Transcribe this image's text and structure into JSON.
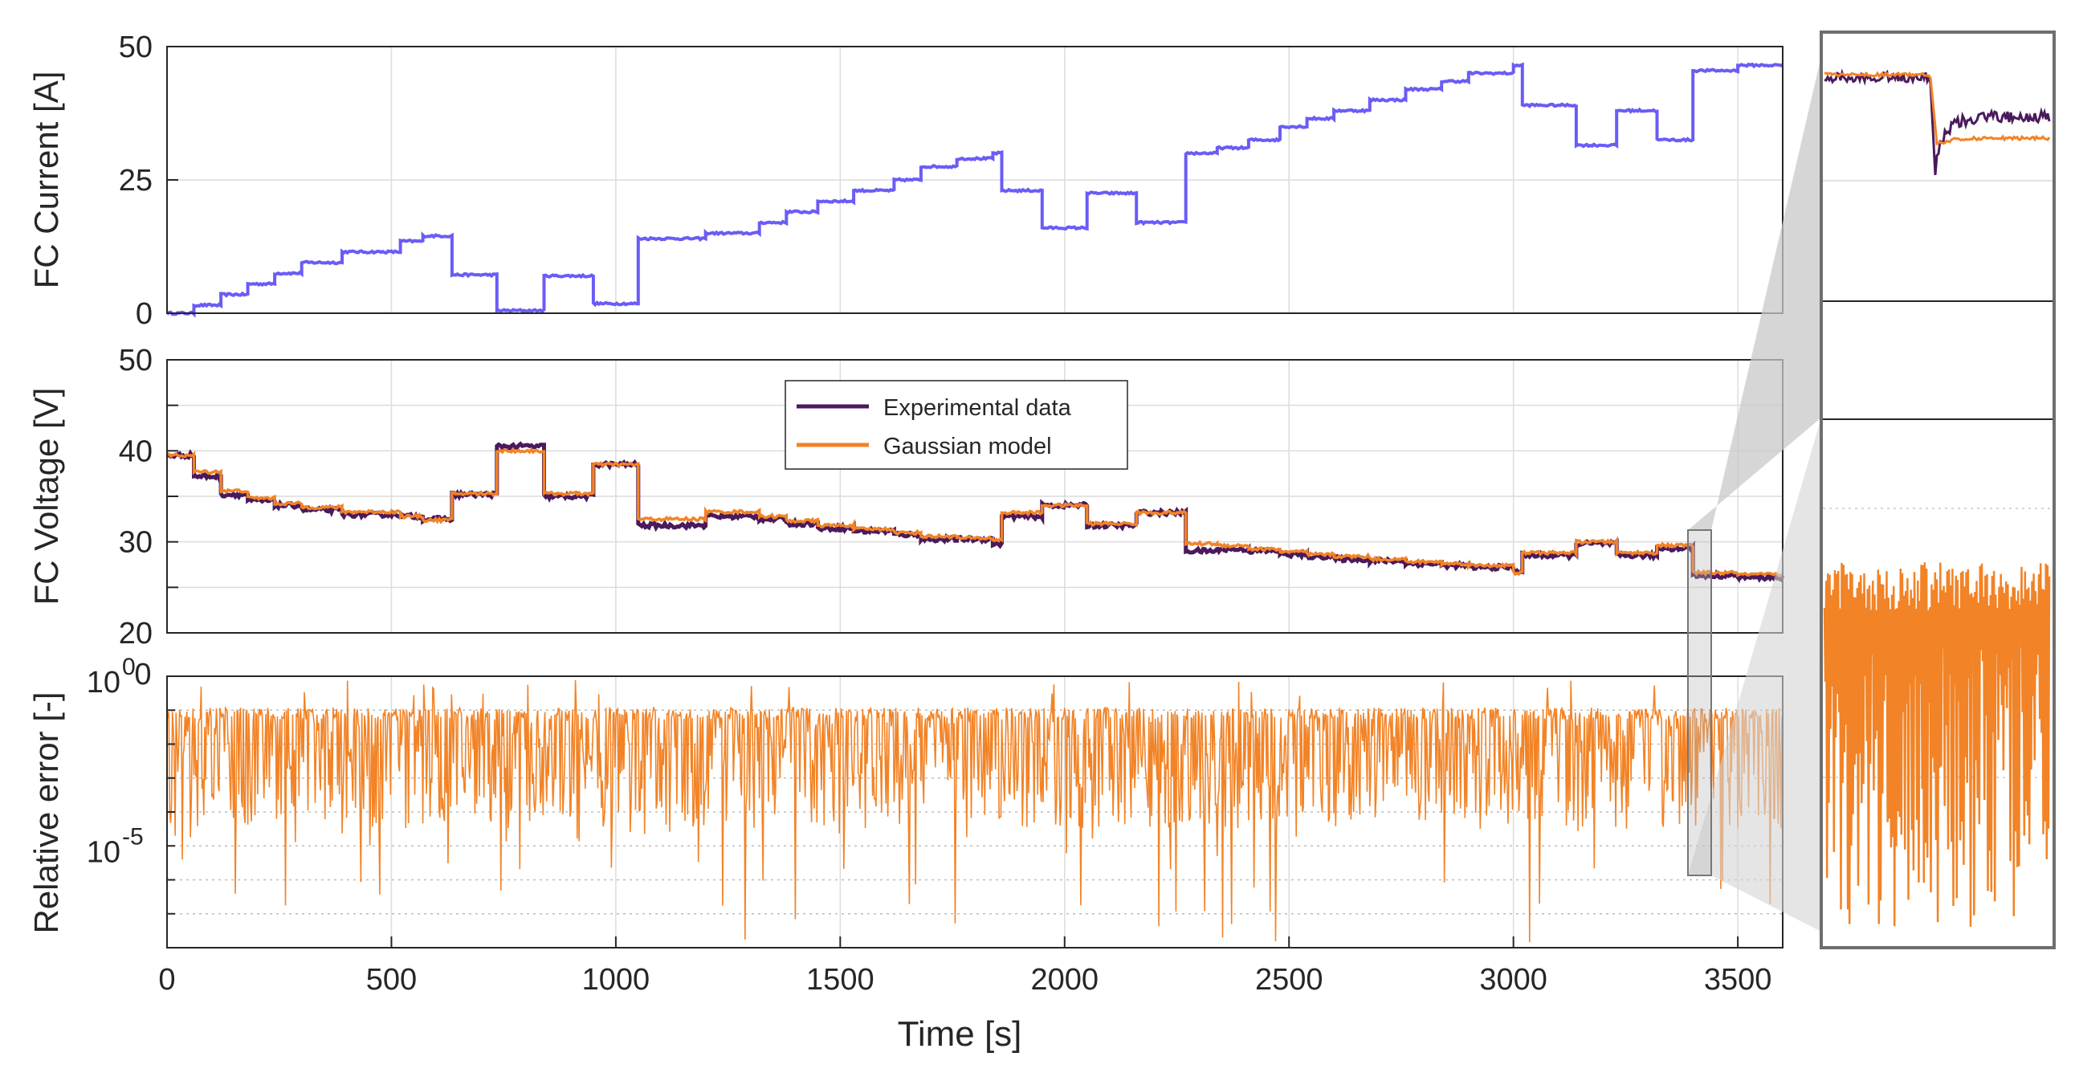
{
  "chart_data": [
    {
      "type": "line",
      "panel": "current",
      "ylabel": "FC Current [A]",
      "ylim": [
        0,
        50
      ],
      "yticks": [
        "0",
        "25",
        "50"
      ],
      "xlim": [
        0,
        3600
      ],
      "series": [
        {
          "name": "FC Current",
          "color": "#6a5cf6",
          "steps": [
            [
              0,
              0
            ],
            [
              60,
              1.5
            ],
            [
              120,
              3.5
            ],
            [
              180,
              5.5
            ],
            [
              240,
              7.5
            ],
            [
              300,
              9.5
            ],
            [
              390,
              11.5
            ],
            [
              520,
              13.5
            ],
            [
              570,
              14.5
            ],
            [
              635,
              7.2
            ],
            [
              735,
              0.5
            ],
            [
              840,
              7
            ],
            [
              950,
              1.8
            ],
            [
              1050,
              14
            ],
            [
              1200,
              15
            ],
            [
              1320,
              17
            ],
            [
              1380,
              19
            ],
            [
              1450,
              21
            ],
            [
              1530,
              23
            ],
            [
              1620,
              25
            ],
            [
              1680,
              27.5
            ],
            [
              1760,
              29
            ],
            [
              1840,
              30
            ],
            [
              1860,
              23
            ],
            [
              1950,
              16
            ],
            [
              2050,
              22.5
            ],
            [
              2160,
              17
            ],
            [
              2270,
              30
            ],
            [
              2340,
              31
            ],
            [
              2410,
              32.5
            ],
            [
              2480,
              35
            ],
            [
              2540,
              36.5
            ],
            [
              2600,
              38
            ],
            [
              2680,
              40
            ],
            [
              2760,
              42
            ],
            [
              2840,
              43.5
            ],
            [
              2900,
              45
            ],
            [
              3000,
              46.5
            ],
            [
              3020,
              39
            ],
            [
              3140,
              31.5
            ],
            [
              3230,
              38
            ],
            [
              3320,
              32.5
            ],
            [
              3400,
              45.5
            ],
            [
              3500,
              46.5
            ],
            [
              3600,
              46.5
            ]
          ]
        }
      ]
    },
    {
      "type": "line",
      "panel": "voltage",
      "ylabel": "FC Voltage [V]",
      "ylim": [
        20,
        50
      ],
      "yticks": [
        "20",
        "30",
        "40",
        "50"
      ],
      "xlim": [
        0,
        3600
      ],
      "legend": {
        "location": "top-center",
        "entries": [
          "Experimental data",
          "Gaussian model"
        ]
      },
      "series": [
        {
          "name": "Experimental data",
          "color": "#4a1a5c",
          "steps": [
            [
              0,
              39.5
            ],
            [
              60,
              37.2
            ],
            [
              120,
              35.2
            ],
            [
              180,
              34.5
            ],
            [
              240,
              34
            ],
            [
              300,
              33.5
            ],
            [
              390,
              33
            ],
            [
              520,
              32.8
            ],
            [
              570,
              32.5
            ],
            [
              635,
              35.2
            ],
            [
              735,
              40.5
            ],
            [
              840,
              35
            ],
            [
              950,
              38.5
            ],
            [
              1050,
              31.8
            ],
            [
              1200,
              32.8
            ],
            [
              1320,
              32.5
            ],
            [
              1380,
              32
            ],
            [
              1450,
              31.5
            ],
            [
              1530,
              31.2
            ],
            [
              1620,
              30.8
            ],
            [
              1680,
              30.3
            ],
            [
              1760,
              30.3
            ],
            [
              1840,
              29.8
            ],
            [
              1860,
              32.8
            ],
            [
              1950,
              34
            ],
            [
              2050,
              31.8
            ],
            [
              2160,
              33.2
            ],
            [
              2270,
              29
            ],
            [
              2340,
              29.2
            ],
            [
              2410,
              29
            ],
            [
              2480,
              28.6
            ],
            [
              2540,
              28.4
            ],
            [
              2600,
              28.1
            ],
            [
              2680,
              27.9
            ],
            [
              2760,
              27.6
            ],
            [
              2840,
              27.4
            ],
            [
              2900,
              27.2
            ],
            [
              3000,
              26.8
            ],
            [
              3020,
              28.5
            ],
            [
              3140,
              29.8
            ],
            [
              3230,
              28.5
            ],
            [
              3320,
              29.3
            ],
            [
              3400,
              26.3
            ],
            [
              3500,
              26.1
            ],
            [
              3600,
              26
            ]
          ]
        },
        {
          "name": "Gaussian model",
          "color": "#f28326",
          "steps": [
            [
              0,
              39.5
            ],
            [
              60,
              37.7
            ],
            [
              120,
              35.6
            ],
            [
              180,
              34.8
            ],
            [
              240,
              34.2
            ],
            [
              300,
              33.8
            ],
            [
              390,
              33.3
            ],
            [
              520,
              32.8
            ],
            [
              570,
              32.4
            ],
            [
              635,
              35.3
            ],
            [
              735,
              40
            ],
            [
              840,
              35.3
            ],
            [
              950,
              38.5
            ],
            [
              1050,
              32.5
            ],
            [
              1200,
              33.3
            ],
            [
              1320,
              32.8
            ],
            [
              1380,
              32.3
            ],
            [
              1450,
              31.8
            ],
            [
              1530,
              31.4
            ],
            [
              1620,
              31
            ],
            [
              1680,
              30.6
            ],
            [
              1760,
              30.4
            ],
            [
              1840,
              30.2
            ],
            [
              1860,
              33.2
            ],
            [
              1950,
              34
            ],
            [
              2050,
              32
            ],
            [
              2160,
              33.2
            ],
            [
              2270,
              29.8
            ],
            [
              2340,
              29.6
            ],
            [
              2410,
              29.2
            ],
            [
              2480,
              28.9
            ],
            [
              2540,
              28.6
            ],
            [
              2600,
              28.4
            ],
            [
              2680,
              28.1
            ],
            [
              2760,
              27.8
            ],
            [
              2840,
              27.6
            ],
            [
              2900,
              27.4
            ],
            [
              3000,
              26.6
            ],
            [
              3020,
              28.8
            ],
            [
              3140,
              30
            ],
            [
              3230,
              28.8
            ],
            [
              3320,
              29.6
            ],
            [
              3400,
              26.6
            ],
            [
              3500,
              26.4
            ],
            [
              3600,
              26.2
            ]
          ]
        }
      ]
    },
    {
      "type": "line",
      "panel": "error",
      "ylabel": "Relative error [-]",
      "yscale": "log",
      "ylim_log10": [
        -8,
        0
      ],
      "yticks": [
        {
          "base": "10",
          "exp": "0",
          "value": 0
        },
        {
          "base": "10",
          "exp": "-5",
          "value": -5
        }
      ],
      "top_label": "0",
      "xlim": [
        0,
        3600
      ],
      "xticks": [
        "0",
        "500",
        "1000",
        "1500",
        "2000",
        "2500",
        "3000",
        "3500"
      ],
      "xlabel": "Time [s]",
      "series": [
        {
          "name": "Relative error",
          "color": "#f28326",
          "log10_median": -1.1,
          "log10_min": -7.9,
          "log10_max": -0.1
        }
      ]
    },
    {
      "type": "line",
      "panel": "zoom-inset",
      "description_range_s": [
        3390,
        3430
      ],
      "series": [
        {
          "name": "Experimental data",
          "color": "#4a1a5c"
        },
        {
          "name": "Gaussian model",
          "color": "#f28326"
        }
      ]
    }
  ]
}
